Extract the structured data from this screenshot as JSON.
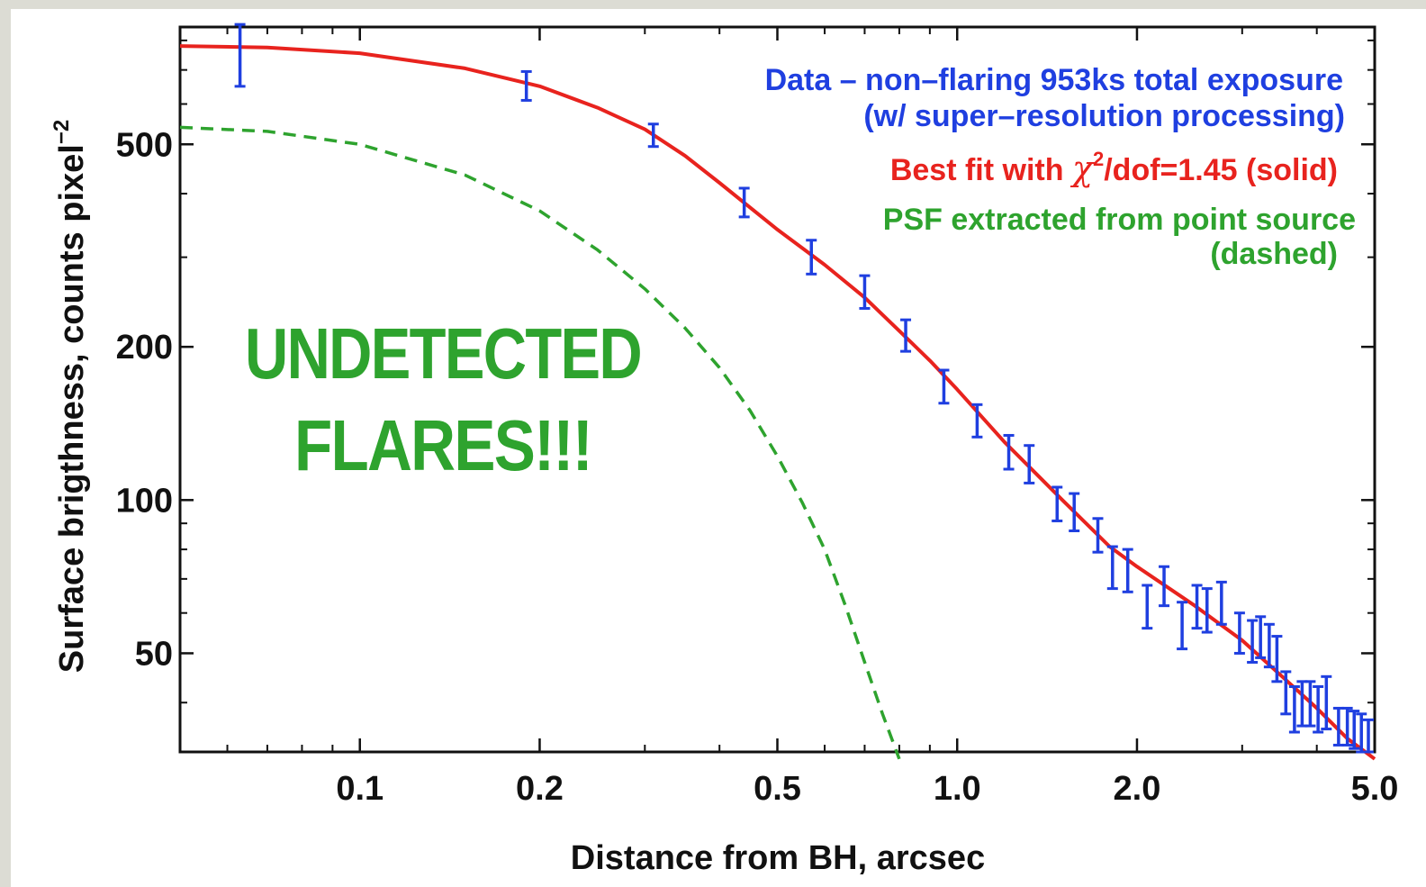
{
  "chart_data": {
    "type": "line",
    "xscale": "log",
    "yscale": "log",
    "xlim": [
      0.05,
      5.0
    ],
    "ylim": [
      32,
      850
    ],
    "xlabel": "Distance from BH, arcsec",
    "ylabel": "Surface brigthness, counts pixel",
    "ylabel_superscript": "−2",
    "xticks": [
      {
        "value": 0.1,
        "label": "0.1"
      },
      {
        "value": 0.2,
        "label": "0.2"
      },
      {
        "value": 0.5,
        "label": "0.5"
      },
      {
        "value": 1.0,
        "label": "1.0"
      },
      {
        "value": 2.0,
        "label": "2.0"
      },
      {
        "value": 5.0,
        "label": "5.0"
      }
    ],
    "yticks": [
      {
        "value": 50,
        "label": "50"
      },
      {
        "value": 100,
        "label": "100"
      },
      {
        "value": 200,
        "label": "200"
      },
      {
        "value": 500,
        "label": "500"
      }
    ],
    "series": [
      {
        "name": "Data – non–flaring 953ks total exposure",
        "kind": "errorbar",
        "color": "#1f3fe0",
        "points": [
          {
            "x": 0.063,
            "y": 750,
            "lo": 650,
            "hi": 860
          },
          {
            "x": 0.19,
            "y": 650,
            "lo": 610,
            "hi": 695
          },
          {
            "x": 0.31,
            "y": 520,
            "lo": 495,
            "hi": 548
          },
          {
            "x": 0.44,
            "y": 385,
            "lo": 360,
            "hi": 410
          },
          {
            "x": 0.57,
            "y": 300,
            "lo": 278,
            "hi": 324
          },
          {
            "x": 0.7,
            "y": 256,
            "lo": 238,
            "hi": 276
          },
          {
            "x": 0.82,
            "y": 210,
            "lo": 196,
            "hi": 226
          },
          {
            "x": 0.95,
            "y": 167,
            "lo": 155,
            "hi": 180
          },
          {
            "x": 1.08,
            "y": 143,
            "lo": 133,
            "hi": 154
          },
          {
            "x": 1.22,
            "y": 124,
            "lo": 115,
            "hi": 134
          },
          {
            "x": 1.32,
            "y": 118,
            "lo": 108,
            "hi": 128
          },
          {
            "x": 1.47,
            "y": 98,
            "lo": 91,
            "hi": 106
          },
          {
            "x": 1.57,
            "y": 95,
            "lo": 87,
            "hi": 103
          },
          {
            "x": 1.72,
            "y": 85,
            "lo": 79,
            "hi": 92
          },
          {
            "x": 1.82,
            "y": 74,
            "lo": 67,
            "hi": 81
          },
          {
            "x": 1.93,
            "y": 73,
            "lo": 66,
            "hi": 80
          },
          {
            "x": 2.08,
            "y": 62,
            "lo": 56,
            "hi": 68
          },
          {
            "x": 2.22,
            "y": 68,
            "lo": 62,
            "hi": 74
          },
          {
            "x": 2.38,
            "y": 57,
            "lo": 51,
            "hi": 63
          },
          {
            "x": 2.52,
            "y": 62,
            "lo": 56,
            "hi": 68
          },
          {
            "x": 2.62,
            "y": 61,
            "lo": 55,
            "hi": 67
          },
          {
            "x": 2.77,
            "y": 63,
            "lo": 57,
            "hi": 69
          },
          {
            "x": 2.97,
            "y": 55,
            "lo": 50,
            "hi": 60
          },
          {
            "x": 3.12,
            "y": 53,
            "lo": 48,
            "hi": 58
          },
          {
            "x": 3.22,
            "y": 54,
            "lo": 49,
            "hi": 59
          },
          {
            "x": 3.33,
            "y": 52,
            "lo": 47,
            "hi": 57
          },
          {
            "x": 3.43,
            "y": 49,
            "lo": 44,
            "hi": 54
          },
          {
            "x": 3.55,
            "y": 42,
            "lo": 38,
            "hi": 46
          },
          {
            "x": 3.67,
            "y": 39,
            "lo": 35,
            "hi": 43
          },
          {
            "x": 3.78,
            "y": 40,
            "lo": 36,
            "hi": 44
          },
          {
            "x": 3.9,
            "y": 40,
            "lo": 36,
            "hi": 44
          },
          {
            "x": 4.02,
            "y": 39,
            "lo": 35,
            "hi": 43
          },
          {
            "x": 4.15,
            "y": 40,
            "lo": 35.5,
            "hi": 45
          },
          {
            "x": 4.35,
            "y": 36,
            "lo": 33,
            "hi": 39
          },
          {
            "x": 4.5,
            "y": 36,
            "lo": 33,
            "hi": 39
          },
          {
            "x": 4.62,
            "y": 35.5,
            "lo": 32.5,
            "hi": 38.5
          },
          {
            "x": 4.75,
            "y": 35,
            "lo": 32,
            "hi": 38
          },
          {
            "x": 4.88,
            "y": 34.5,
            "lo": 32,
            "hi": 37
          }
        ]
      },
      {
        "name": "Best fit",
        "kind": "line",
        "style": "solid",
        "color": "#e8231e",
        "x": [
          0.05,
          0.07,
          0.1,
          0.15,
          0.2,
          0.25,
          0.3,
          0.35,
          0.4,
          0.5,
          0.6,
          0.7,
          0.8,
          0.9,
          1.0,
          1.2,
          1.5,
          1.8,
          2.0,
          2.5,
          3.0,
          3.5,
          4.0,
          4.5,
          5.0
        ],
        "y": [
          780,
          775,
          755,
          705,
          650,
          590,
          535,
          475,
          420,
          340,
          290,
          250,
          215,
          188,
          165,
          130,
          100,
          81,
          74,
          62,
          53,
          45,
          39,
          34,
          31
        ]
      },
      {
        "name": "PSF",
        "kind": "line",
        "style": "dashed",
        "color": "#2ea32e",
        "x": [
          0.05,
          0.07,
          0.1,
          0.15,
          0.2,
          0.25,
          0.3,
          0.35,
          0.4,
          0.45,
          0.5,
          0.55,
          0.6,
          0.65,
          0.7,
          0.75,
          0.8
        ],
        "y": [
          540,
          530,
          500,
          435,
          370,
          310,
          260,
          218,
          182,
          150,
          122,
          99,
          80,
          62,
          48,
          38,
          31
        ]
      }
    ],
    "legend": {
      "placement": "top-right",
      "lines": [
        {
          "text": "Data – non–flaring 953ks total exposure",
          "color": "#1f3fe0"
        },
        {
          "text": "(w/ super–resolution processing)",
          "color": "#1f3fe0"
        },
        {
          "text_before": "Best fit with ",
          "symbol": "χ",
          "superscript": "2",
          "text_after": "/dof=1.45 (solid)",
          "color": "#e8231e"
        },
        {
          "text_bold": "PSF",
          "text": " extracted from point source",
          "color": "#2ea32e"
        },
        {
          "text": "(dashed)",
          "color": "#2ea32e"
        }
      ]
    },
    "annotations": [
      {
        "text": "UNDETECTED",
        "color": "#2ea32e"
      },
      {
        "text": "FLARES!!!",
        "color": "#2ea32e"
      }
    ]
  }
}
